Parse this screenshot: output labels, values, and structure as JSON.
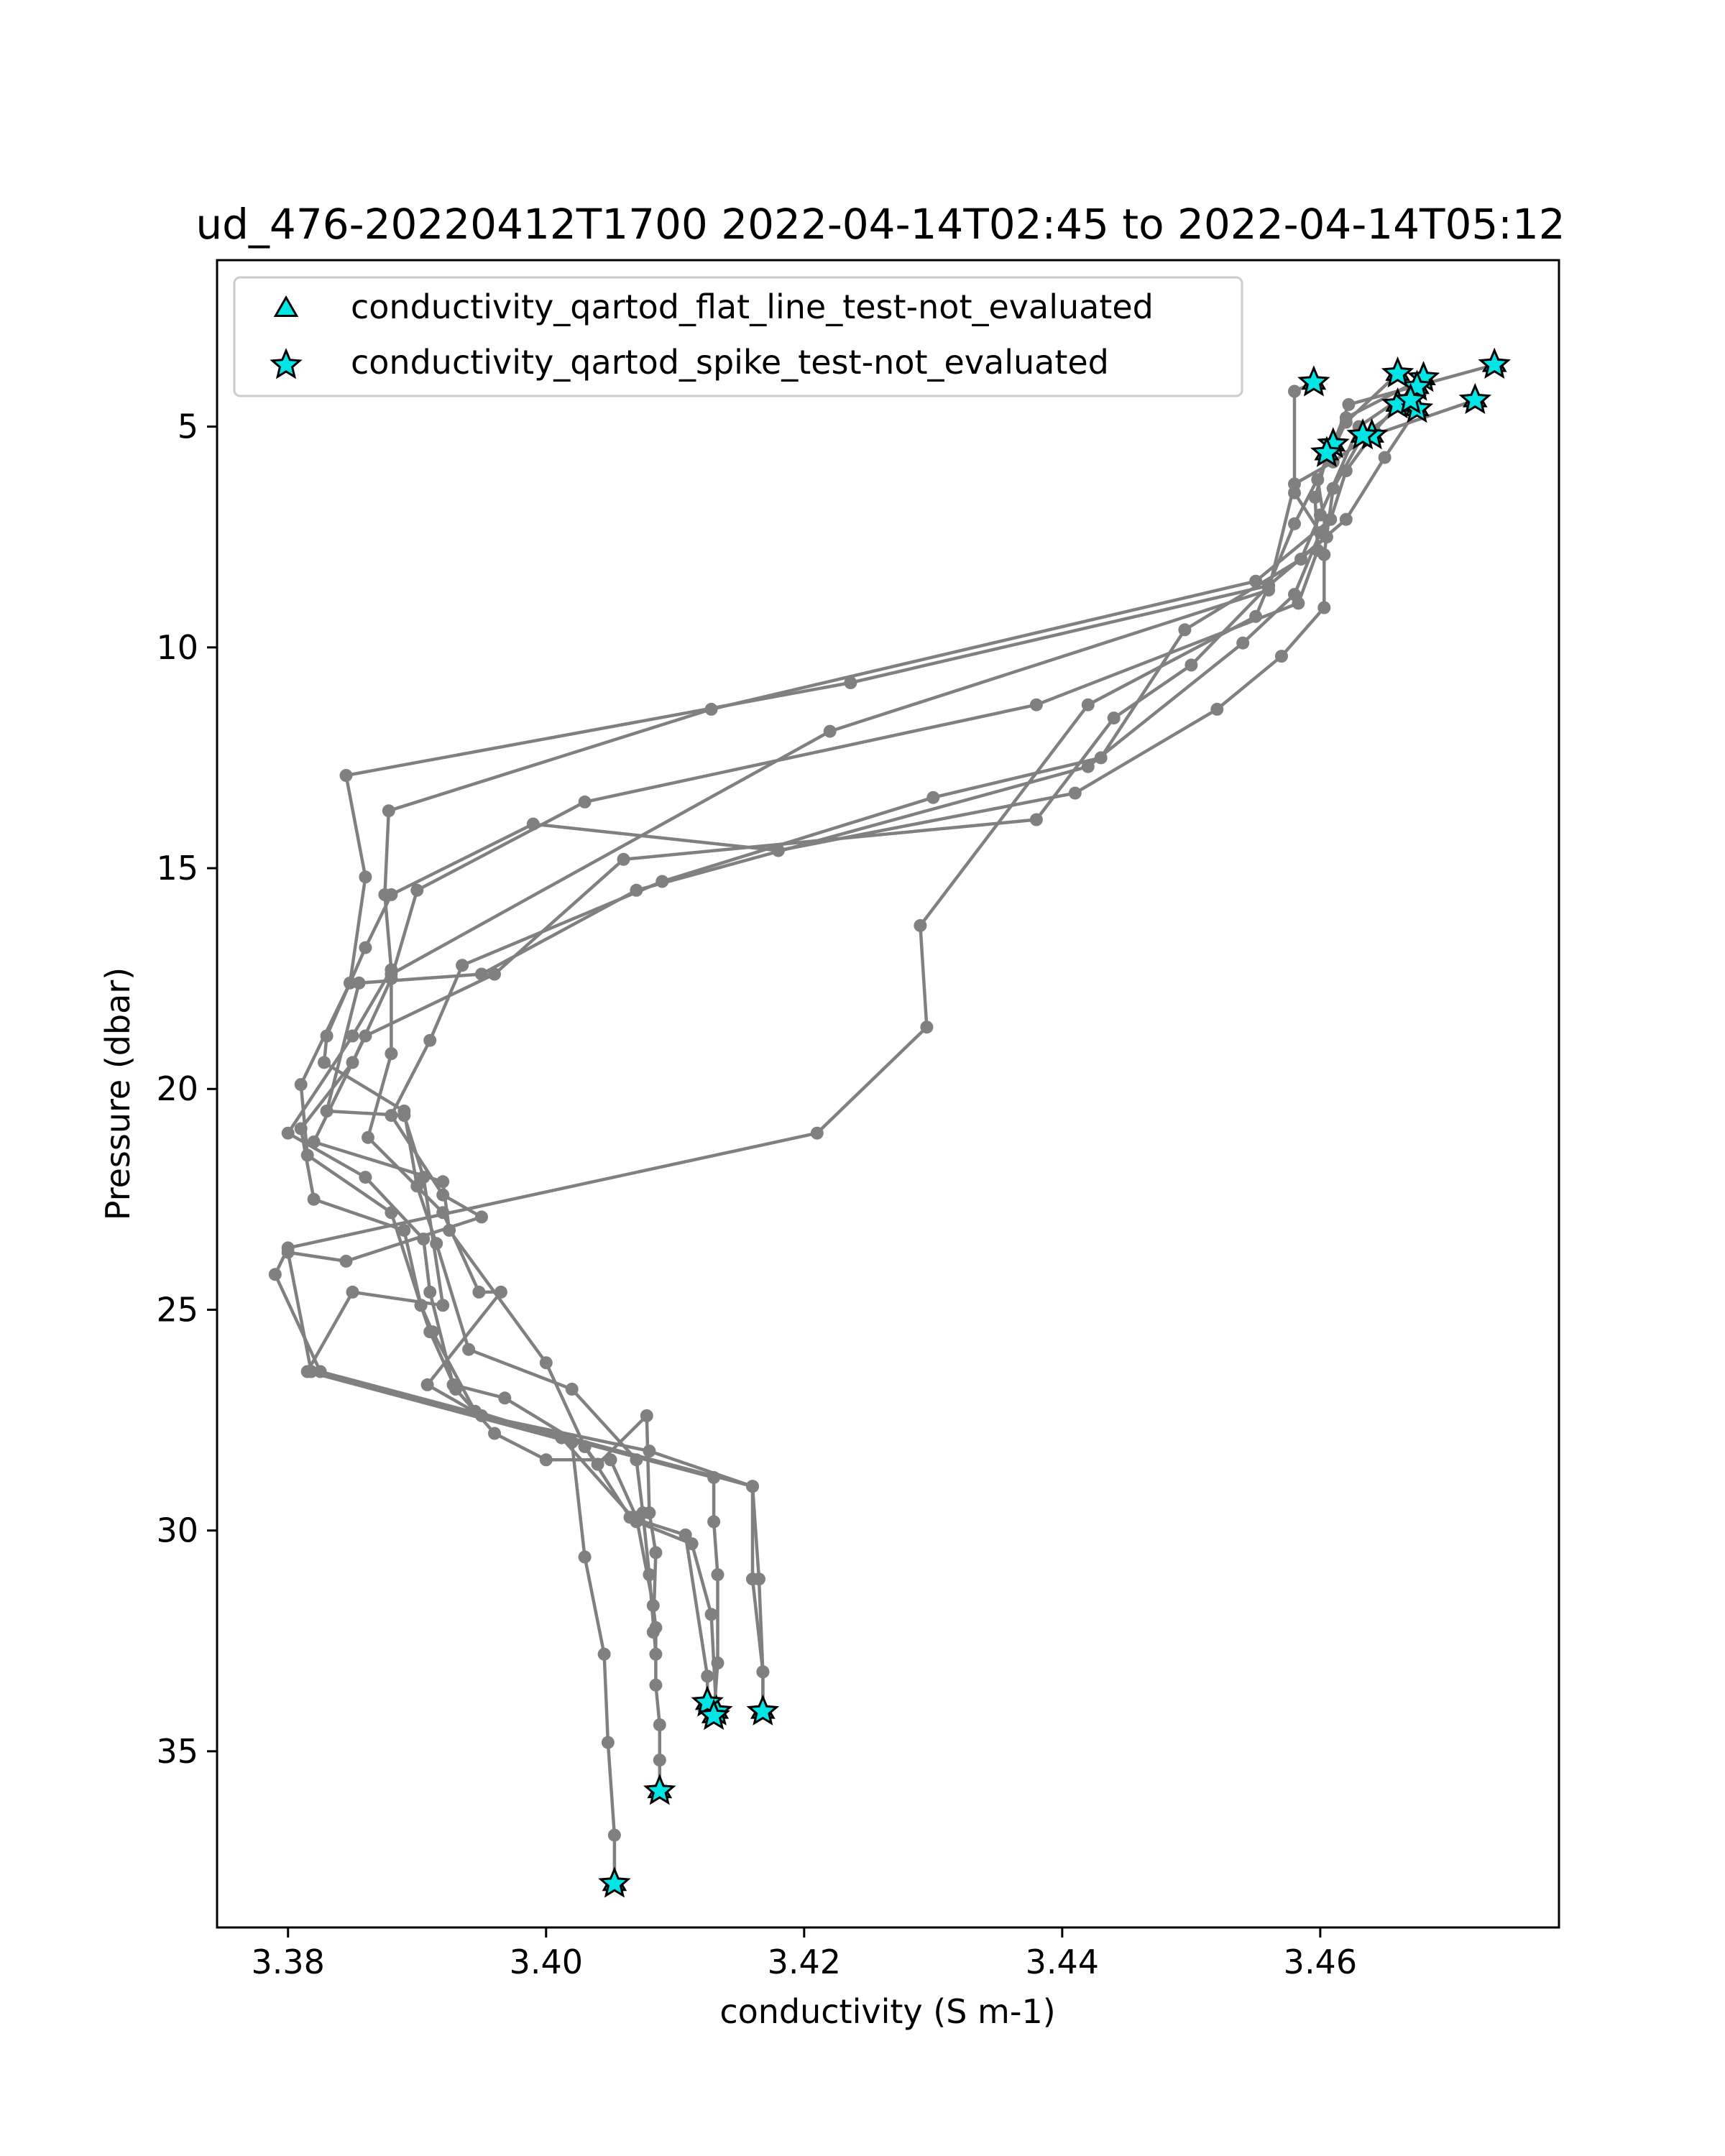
{
  "chart_data": {
    "type": "scatter",
    "title": "ud_476-20220412T1700 2022-04-14T02:45 to 2022-04-14T05:12",
    "xlabel": "conductivity (S m-1)",
    "ylabel": "Pressure (dbar)",
    "xlim": [
      3.3745,
      3.4785
    ],
    "ylim": [
      38.99,
      1.23
    ],
    "y_inverted": true,
    "x_ticks": [
      3.38,
      3.4,
      3.42,
      3.44,
      3.46
    ],
    "x_tick_labels": [
      "3.38",
      "3.40",
      "3.42",
      "3.44",
      "3.46"
    ],
    "y_ticks": [
      5,
      10,
      15,
      20,
      25,
      30,
      35
    ],
    "y_tick_labels": [
      "5",
      "10",
      "15",
      "20",
      "25",
      "30",
      "35"
    ],
    "grid": false,
    "legend": {
      "position": "top-left",
      "entries": [
        {
          "label": "conductivity_qartod_flat_line_test-not_evaluated",
          "marker": "triangle"
        },
        {
          "label": "conductivity_qartod_spike_test-not_evaluated",
          "marker": "star"
        }
      ]
    },
    "colors": {
      "line": "#808080",
      "marker_fill": "#00e5e5",
      "marker_edge": "#000000"
    },
    "series": [
      {
        "points": [
          [
            3.4735,
            3.6
          ],
          [
            3.4622,
            4.5
          ],
          [
            3.461,
            5.4
          ],
          [
            3.4598,
            6.2
          ],
          [
            3.4605,
            7.5
          ],
          [
            3.456,
            8.6
          ],
          [
            3.4236,
            10.8
          ],
          [
            3.3845,
            12.9
          ],
          [
            3.386,
            15.2
          ],
          [
            3.3848,
            17.6
          ],
          [
            3.381,
            19.9
          ],
          [
            3.3815,
            21.5
          ],
          [
            3.388,
            22.8
          ],
          [
            3.3903,
            24.9
          ],
          [
            3.3912,
            25.5
          ],
          [
            3.3945,
            27.3
          ],
          [
            3.4012,
            27.9
          ],
          [
            3.407,
            29.8
          ],
          [
            3.4113,
            30.3
          ],
          [
            3.4128,
            31.9
          ],
          [
            3.4132,
            34.1
          ]
        ]
      },
      {
        "points": [
          [
            3.472,
            4.4
          ],
          [
            3.464,
            5.2
          ],
          [
            3.462,
            6.0
          ],
          [
            3.4608,
            7.1
          ],
          [
            3.455,
            8.5
          ],
          [
            3.4128,
            11.4
          ],
          [
            3.3878,
            13.7
          ],
          [
            3.3875,
            15.6
          ],
          [
            3.388,
            17.3
          ],
          [
            3.385,
            18.8
          ],
          [
            3.38,
            21.0
          ],
          [
            3.386,
            22.0
          ],
          [
            3.3905,
            23.4
          ],
          [
            3.391,
            24.6
          ],
          [
            3.3928,
            26.7
          ],
          [
            3.3968,
            27.0
          ],
          [
            3.403,
            28.1
          ],
          [
            3.4065,
            29.7
          ],
          [
            3.4108,
            30.1
          ],
          [
            3.4125,
            33.3
          ],
          [
            3.4125,
            33.9
          ]
        ]
      },
      {
        "points": [
          [
            3.466,
            4.5
          ],
          [
            3.4642,
            5.1
          ],
          [
            3.461,
            5.8
          ],
          [
            3.458,
            6.3
          ],
          [
            3.456,
            8.7
          ],
          [
            3.422,
            11.9
          ],
          [
            3.388,
            17.4
          ],
          [
            3.388,
            19.2
          ],
          [
            3.3862,
            21.1
          ],
          [
            3.392,
            22.8
          ],
          [
            3.3948,
            24.6
          ],
          [
            3.3965,
            24.6
          ],
          [
            3.3908,
            26.7
          ],
          [
            3.395,
            27.4
          ],
          [
            3.408,
            28.2
          ],
          [
            3.416,
            29.0
          ],
          [
            3.4165,
            31.1
          ],
          [
            3.4168,
            33.2
          ],
          [
            3.4168,
            34.1
          ]
        ]
      },
      {
        "points": [
          [
            3.468,
            3.9
          ],
          [
            3.462,
            4.8
          ],
          [
            3.4605,
            5.7
          ],
          [
            3.4596,
            6.6
          ],
          [
            3.4598,
            7.8
          ],
          [
            3.4583,
            9.0
          ],
          [
            3.438,
            11.3
          ],
          [
            3.403,
            13.5
          ],
          [
            3.39,
            15.5
          ],
          [
            3.388,
            17.5
          ],
          [
            3.385,
            19.4
          ],
          [
            3.381,
            20.9
          ],
          [
            3.382,
            22.5
          ],
          [
            3.389,
            23.2
          ],
          [
            3.3903,
            24.9
          ],
          [
            3.391,
            25.5
          ],
          [
            3.393,
            26.8
          ],
          [
            3.396,
            27.8
          ],
          [
            3.4,
            28.4
          ],
          [
            3.405,
            28.4
          ],
          [
            3.407,
            29.7
          ],
          [
            3.4083,
            31.7
          ],
          [
            3.4085,
            32.2
          ],
          [
            3.4085,
            33.5
          ],
          [
            3.4088,
            34.4
          ],
          [
            3.4088,
            35.2
          ],
          [
            3.4088,
            35.9
          ]
        ]
      },
      {
        "points": [
          [
            3.4675,
            4.1
          ],
          [
            3.463,
            5.0
          ],
          [
            3.46,
            7.0
          ],
          [
            3.4585,
            8.0
          ],
          [
            3.4495,
            9.6
          ],
          [
            3.443,
            12.5
          ],
          [
            3.43,
            13.4
          ],
          [
            3.409,
            15.3
          ],
          [
            3.3935,
            17.2
          ],
          [
            3.391,
            18.9
          ],
          [
            3.388,
            20.6
          ],
          [
            3.392,
            22.4
          ],
          [
            3.395,
            22.9
          ],
          [
            3.3845,
            23.9
          ],
          [
            3.38,
            23.7
          ],
          [
            3.3818,
            26.4
          ],
          [
            3.413,
            28.8
          ],
          [
            3.413,
            29.8
          ],
          [
            3.4133,
            31.0
          ],
          [
            3.4133,
            33.0
          ],
          [
            3.413,
            34.2
          ]
        ]
      },
      {
        "points": [
          [
            3.466,
            3.8
          ],
          [
            3.462,
            4.9
          ],
          [
            3.461,
            5.5
          ],
          [
            3.458,
            7.2
          ],
          [
            3.455,
            9.3
          ],
          [
            3.442,
            11.3
          ],
          [
            3.429,
            16.3
          ],
          [
            3.4295,
            18.6
          ],
          [
            3.421,
            21.0
          ],
          [
            3.38,
            23.6
          ],
          [
            3.379,
            24.2
          ],
          [
            3.3825,
            26.4
          ],
          [
            3.416,
            29.0
          ],
          [
            3.416,
            31.1
          ],
          [
            3.4168,
            33.2
          ],
          [
            3.4168,
            34.1
          ]
        ]
      },
      {
        "points": [
          [
            3.4595,
            4.0
          ],
          [
            3.458,
            4.2
          ],
          [
            3.458,
            6.5
          ],
          [
            3.46,
            7.4
          ],
          [
            3.458,
            8.8
          ],
          [
            3.454,
            9.9
          ],
          [
            3.442,
            12.7
          ],
          [
            3.407,
            15.5
          ],
          [
            3.395,
            17.4
          ],
          [
            3.3855,
            17.6
          ],
          [
            3.383,
            20.5
          ],
          [
            3.389,
            20.6
          ],
          [
            3.3905,
            22.0
          ],
          [
            3.392,
            24.9
          ],
          [
            3.385,
            24.6
          ],
          [
            3.3815,
            26.4
          ],
          [
            3.402,
            28.0
          ],
          [
            3.403,
            30.6
          ],
          [
            3.4045,
            32.8
          ],
          [
            3.4048,
            34.8
          ],
          [
            3.4053,
            36.9
          ],
          [
            3.4053,
            38.0
          ]
        ]
      },
      {
        "points": [
          [
            3.4675,
            4.6
          ],
          [
            3.465,
            5.7
          ],
          [
            3.462,
            7.1
          ],
          [
            3.456,
            8.6
          ],
          [
            3.45,
            10.4
          ],
          [
            3.444,
            11.6
          ],
          [
            3.438,
            13.9
          ],
          [
            3.406,
            14.8
          ],
          [
            3.396,
            17.4
          ],
          [
            3.386,
            18.8
          ],
          [
            3.382,
            21.2
          ],
          [
            3.392,
            22.1
          ],
          [
            3.3925,
            23.2
          ],
          [
            3.4,
            26.2
          ],
          [
            3.403,
            28.1
          ],
          [
            3.404,
            28.5
          ],
          [
            3.4078,
            27.4
          ],
          [
            3.408,
            29.6
          ],
          [
            3.4085,
            30.5
          ],
          [
            3.4083,
            32.3
          ]
        ]
      },
      {
        "points": [
          [
            3.467,
            4.4
          ],
          [
            3.4633,
            5.2
          ],
          [
            3.461,
            6.4
          ],
          [
            3.4603,
            7.9
          ],
          [
            3.4603,
            9.1
          ],
          [
            3.457,
            10.2
          ],
          [
            3.452,
            11.4
          ],
          [
            3.441,
            13.3
          ],
          [
            3.418,
            14.6
          ],
          [
            3.399,
            14.0
          ],
          [
            3.388,
            15.6
          ],
          [
            3.386,
            16.8
          ],
          [
            3.383,
            18.8
          ],
          [
            3.3828,
            19.4
          ],
          [
            3.389,
            20.5
          ],
          [
            3.39,
            22.2
          ],
          [
            3.3915,
            23.5
          ],
          [
            3.394,
            25.9
          ],
          [
            3.402,
            26.8
          ],
          [
            3.407,
            28.4
          ],
          [
            3.4075,
            29.6
          ],
          [
            3.408,
            31.0
          ],
          [
            3.4085,
            32.8
          ]
        ]
      }
    ],
    "flat_line_test_not_evaluated": [
      [
        3.4735,
        3.6
      ],
      [
        3.472,
        4.4
      ],
      [
        3.466,
        4.5
      ],
      [
        3.468,
        3.9
      ],
      [
        3.4675,
        4.1
      ],
      [
        3.466,
        3.8
      ],
      [
        3.4595,
        4.0
      ],
      [
        3.4675,
        4.6
      ],
      [
        3.467,
        4.4
      ],
      [
        3.464,
        5.2
      ],
      [
        3.4633,
        5.2
      ],
      [
        3.461,
        5.4
      ],
      [
        3.4605,
        5.6
      ],
      [
        3.4132,
        34.1
      ],
      [
        3.4125,
        33.9
      ],
      [
        3.4168,
        34.1
      ],
      [
        3.413,
        34.2
      ],
      [
        3.4088,
        35.9
      ],
      [
        3.4053,
        38.0
      ]
    ],
    "spike_test_not_evaluated": [
      [
        3.4735,
        3.6
      ],
      [
        3.472,
        4.4
      ],
      [
        3.466,
        4.5
      ],
      [
        3.468,
        3.9
      ],
      [
        3.4675,
        4.1
      ],
      [
        3.466,
        3.8
      ],
      [
        3.4595,
        4.0
      ],
      [
        3.4675,
        4.6
      ],
      [
        3.467,
        4.4
      ],
      [
        3.464,
        5.2
      ],
      [
        3.4633,
        5.2
      ],
      [
        3.461,
        5.4
      ],
      [
        3.4605,
        5.6
      ],
      [
        3.4132,
        34.1
      ],
      [
        3.4125,
        33.9
      ],
      [
        3.4168,
        34.1
      ],
      [
        3.413,
        34.2
      ],
      [
        3.4088,
        35.9
      ],
      [
        3.4053,
        38.0
      ]
    ]
  }
}
